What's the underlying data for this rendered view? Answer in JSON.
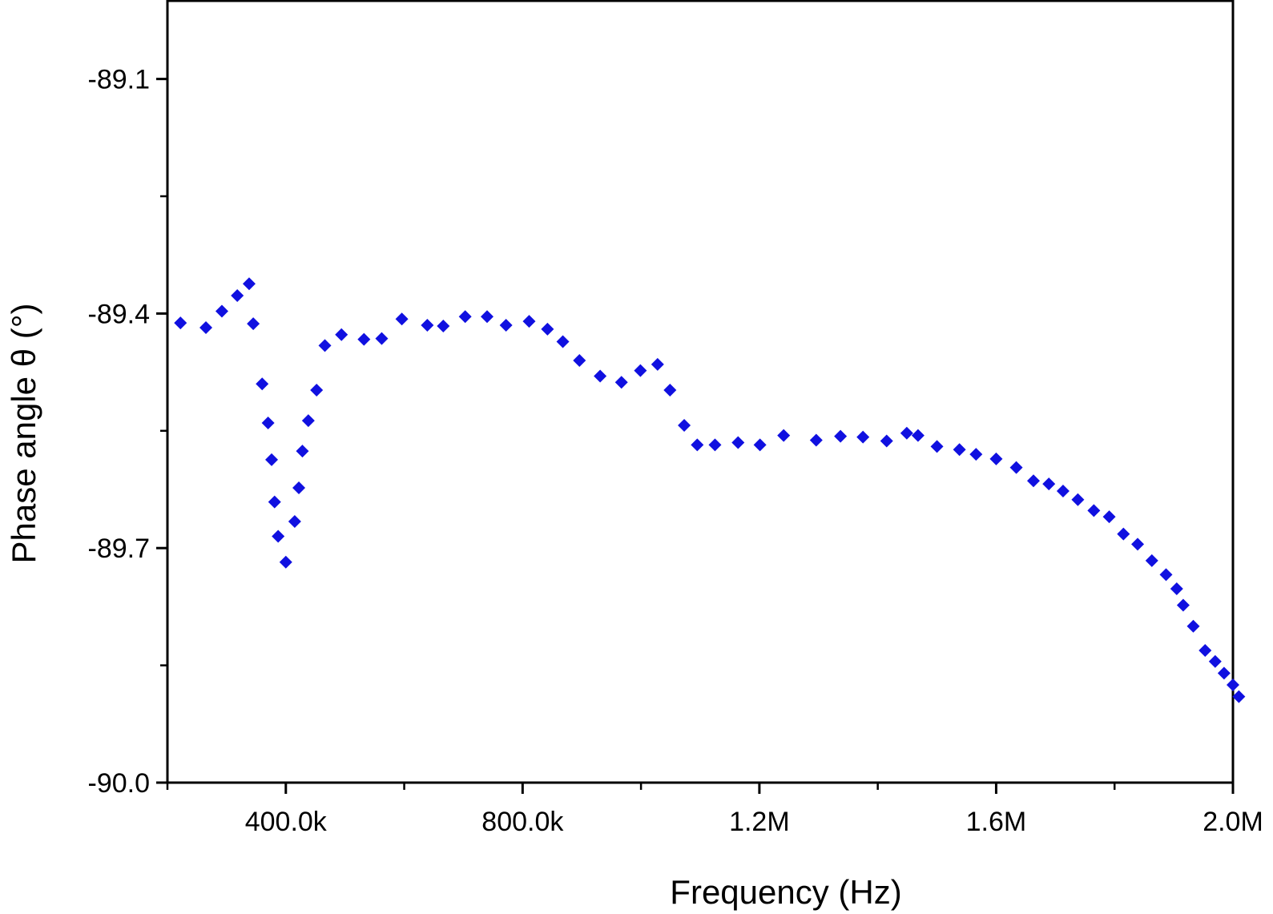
{
  "chart_data": {
    "type": "scatter",
    "title": "",
    "xlabel": "Frequency (Hz)",
    "ylabel": "Phase angle θ (°)",
    "xlim": [
      200000,
      2000000
    ],
    "ylim": [
      -90.0,
      -89.0
    ],
    "x_ticks": [
      {
        "value": 400000,
        "label": "400.0k"
      },
      {
        "value": 800000,
        "label": "800.0k"
      },
      {
        "value": 1200000,
        "label": "1.2M"
      },
      {
        "value": 1600000,
        "label": "1.6M"
      },
      {
        "value": 2000000,
        "label": "2.0M"
      }
    ],
    "x_minor_ticks": [
      200000,
      600000,
      1000000,
      1400000,
      1800000
    ],
    "y_ticks": [
      {
        "value": -89.1,
        "label": "-89.1"
      },
      {
        "value": -89.4,
        "label": "-89.4"
      },
      {
        "value": -89.7,
        "label": "-89.7"
      },
      {
        "value": -90.0,
        "label": "-90.0"
      }
    ],
    "y_minor_ticks": [
      -89.25,
      -89.55,
      -89.85
    ],
    "grid": false,
    "legend": "none",
    "marker": "diamond",
    "marker_color": "#1010e0",
    "series": [
      {
        "points": [
          [
            222000,
            -89.412
          ],
          [
            265000,
            -89.418
          ],
          [
            292000,
            -89.397
          ],
          [
            318000,
            -89.377
          ],
          [
            338000,
            -89.362
          ],
          [
            345000,
            -89.413
          ],
          [
            360000,
            -89.49
          ],
          [
            370000,
            -89.54
          ],
          [
            376000,
            -89.587
          ],
          [
            381000,
            -89.641
          ],
          [
            387000,
            -89.685
          ],
          [
            400000,
            -89.718
          ],
          [
            415000,
            -89.666
          ],
          [
            422000,
            -89.623
          ],
          [
            428000,
            -89.576
          ],
          [
            438000,
            -89.537
          ],
          [
            452000,
            -89.498
          ],
          [
            466000,
            -89.441
          ],
          [
            494000,
            -89.427
          ],
          [
            532000,
            -89.433
          ],
          [
            562000,
            -89.432
          ],
          [
            596000,
            -89.407
          ],
          [
            639000,
            -89.415
          ],
          [
            666000,
            -89.416
          ],
          [
            703000,
            -89.404
          ],
          [
            740000,
            -89.404
          ],
          [
            772000,
            -89.415
          ],
          [
            811000,
            -89.41
          ],
          [
            842000,
            -89.42
          ],
          [
            868000,
            -89.436
          ],
          [
            896000,
            -89.46
          ],
          [
            931000,
            -89.48
          ],
          [
            967000,
            -89.488
          ],
          [
            999000,
            -89.473
          ],
          [
            1028000,
            -89.465
          ],
          [
            1049000,
            -89.498
          ],
          [
            1073000,
            -89.543
          ],
          [
            1095000,
            -89.568
          ],
          [
            1125000,
            -89.568
          ],
          [
            1164000,
            -89.565
          ],
          [
            1201000,
            -89.568
          ],
          [
            1241000,
            -89.556
          ],
          [
            1296000,
            -89.562
          ],
          [
            1337000,
            -89.557
          ],
          [
            1375000,
            -89.558
          ],
          [
            1415000,
            -89.563
          ],
          [
            1449000,
            -89.553
          ],
          [
            1468000,
            -89.556
          ],
          [
            1500000,
            -89.57
          ],
          [
            1538000,
            -89.574
          ],
          [
            1566000,
            -89.58
          ],
          [
            1600000,
            -89.586
          ],
          [
            1634000,
            -89.597
          ],
          [
            1663000,
            -89.614
          ],
          [
            1689000,
            -89.618
          ],
          [
            1713000,
            -89.627
          ],
          [
            1738000,
            -89.638
          ],
          [
            1765000,
            -89.652
          ],
          [
            1791000,
            -89.66
          ],
          [
            1815000,
            -89.682
          ],
          [
            1839000,
            -89.695
          ],
          [
            1863000,
            -89.716
          ],
          [
            1887000,
            -89.734
          ],
          [
            1905000,
            -89.752
          ],
          [
            1916000,
            -89.773
          ],
          [
            1933000,
            -89.8
          ],
          [
            1953000,
            -89.831
          ],
          [
            1970000,
            -89.845
          ],
          [
            1985000,
            -89.86
          ],
          [
            2000000,
            -89.875
          ],
          [
            2010000,
            -89.89
          ]
        ]
      }
    ]
  }
}
